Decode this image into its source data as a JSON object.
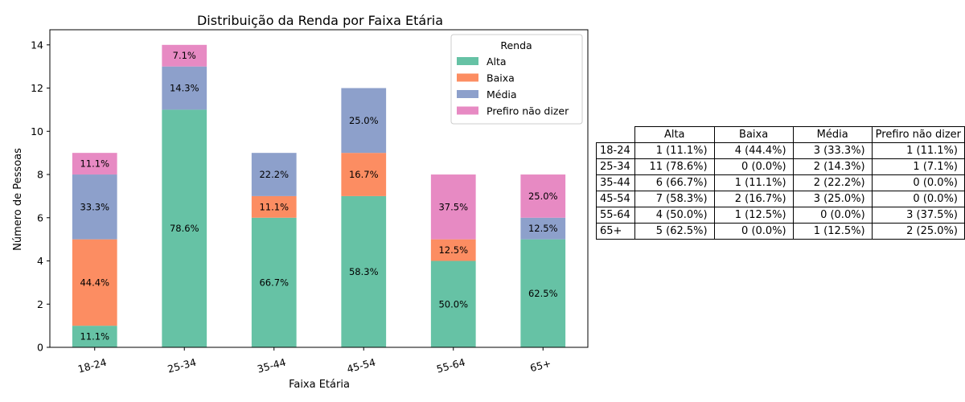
{
  "chart_data": {
    "type": "bar",
    "stacked": true,
    "title": "Distribuição da Renda por Faixa Etária",
    "xlabel": "Faixa Etária",
    "ylabel": "Número de Pessoas",
    "ylim": [
      0,
      14.7
    ],
    "yticks": [
      0,
      2,
      4,
      6,
      8,
      10,
      12,
      14
    ],
    "categories": [
      "18-24",
      "25-34",
      "35-44",
      "45-54",
      "55-64",
      "65+"
    ],
    "legend_title": "Renda",
    "legend_position": "top-right",
    "series": [
      {
        "name": "Alta",
        "color": "#66c2a5",
        "values": [
          1,
          11,
          6,
          7,
          4,
          5
        ],
        "labels": [
          "11.1%",
          "78.6%",
          "66.7%",
          "58.3%",
          "50.0%",
          "62.5%"
        ]
      },
      {
        "name": "Baixa",
        "color": "#fc8d62",
        "values": [
          4,
          0,
          1,
          2,
          1,
          0
        ],
        "labels": [
          "44.4%",
          "",
          "11.1%",
          "16.7%",
          "12.5%",
          ""
        ]
      },
      {
        "name": "Média",
        "color": "#8da0cb",
        "values": [
          3,
          2,
          2,
          3,
          0,
          1
        ],
        "labels": [
          "33.3%",
          "14.3%",
          "22.2%",
          "25.0%",
          "",
          "12.5%"
        ]
      },
      {
        "name": "Prefiro não dizer",
        "color": "#e78ac3",
        "values": [
          1,
          1,
          0,
          0,
          3,
          2
        ],
        "labels": [
          "11.1%",
          "7.1%",
          "",
          "",
          "37.5%",
          "25.0%"
        ]
      }
    ]
  },
  "table": {
    "columns": [
      "Alta",
      "Baixa",
      "Média",
      "Prefiro não dizer"
    ],
    "rows": [
      {
        "label": "18-24",
        "cells": [
          "1 (11.1%)",
          "4 (44.4%)",
          "3 (33.3%)",
          "1 (11.1%)"
        ]
      },
      {
        "label": "25-34",
        "cells": [
          "11 (78.6%)",
          "0 (0.0%)",
          "2 (14.3%)",
          "1 (7.1%)"
        ]
      },
      {
        "label": "35-44",
        "cells": [
          "6 (66.7%)",
          "1 (11.1%)",
          "2 (22.2%)",
          "0 (0.0%)"
        ]
      },
      {
        "label": "45-54",
        "cells": [
          "7 (58.3%)",
          "2 (16.7%)",
          "3 (25.0%)",
          "0 (0.0%)"
        ]
      },
      {
        "label": "55-64",
        "cells": [
          "4 (50.0%)",
          "1 (12.5%)",
          "0 (0.0%)",
          "3 (37.5%)"
        ]
      },
      {
        "label": "65+",
        "cells": [
          "5 (62.5%)",
          "0 (0.0%)",
          "1 (12.5%)",
          "2 (25.0%)"
        ]
      }
    ]
  }
}
